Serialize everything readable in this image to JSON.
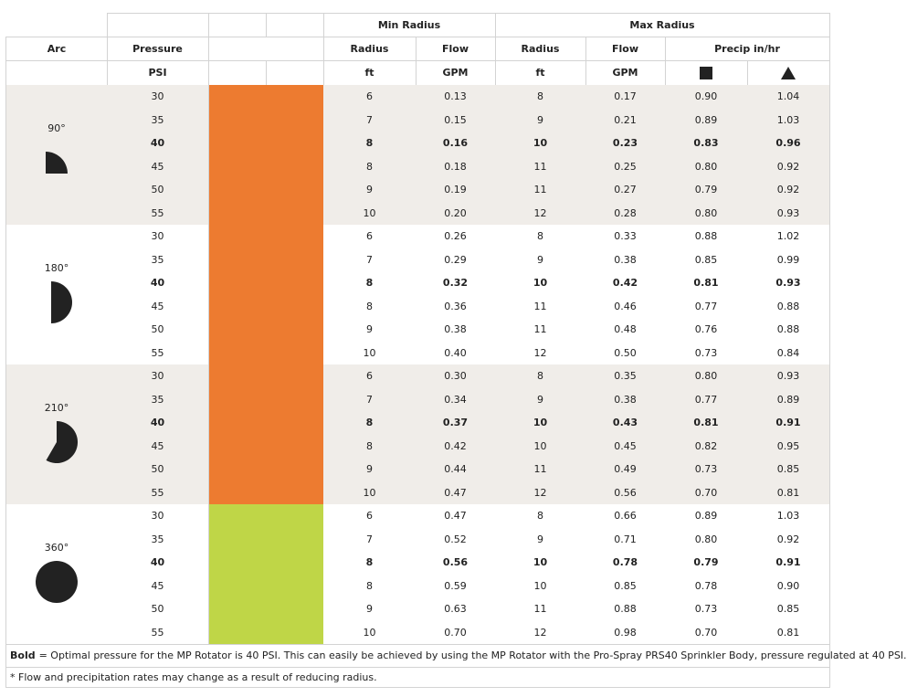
{
  "header": {
    "min_radius": "Min Radius",
    "max_radius": "Max Radius",
    "arc": "Arc",
    "pressure": "Pressure",
    "radius_min": "Radius",
    "flow_min": "Flow",
    "radius_max": "Radius",
    "flow_max": "Flow",
    "precip": "Precip in/hr",
    "psi": "PSI",
    "ft_min": "ft",
    "gpm_min": "GPM",
    "ft_max": "ft",
    "gpm_max": "GPM"
  },
  "groups": [
    {
      "arc": "90°",
      "color": "#ed7b30",
      "background": "#f0ede9",
      "rows": [
        [
          "30",
          "6",
          "0.13",
          "8",
          "0.17",
          "0.90",
          "1.04"
        ],
        [
          "35",
          "7",
          "0.15",
          "9",
          "0.21",
          "0.89",
          "1.03"
        ],
        [
          "40",
          "8",
          "0.16",
          "10",
          "0.23",
          "0.83",
          "0.96"
        ],
        [
          "45",
          "8",
          "0.18",
          "11",
          "0.25",
          "0.80",
          "0.92"
        ],
        [
          "50",
          "9",
          "0.19",
          "11",
          "0.27",
          "0.79",
          "0.92"
        ],
        [
          "55",
          "10",
          "0.20",
          "12",
          "0.28",
          "0.80",
          "0.93"
        ]
      ]
    },
    {
      "arc": "180°",
      "color": "#ed7b30",
      "background": "#ffffff",
      "rows": [
        [
          "30",
          "6",
          "0.26",
          "8",
          "0.33",
          "0.88",
          "1.02"
        ],
        [
          "35",
          "7",
          "0.29",
          "9",
          "0.38",
          "0.85",
          "0.99"
        ],
        [
          "40",
          "8",
          "0.32",
          "10",
          "0.42",
          "0.81",
          "0.93"
        ],
        [
          "45",
          "8",
          "0.36",
          "11",
          "0.46",
          "0.77",
          "0.88"
        ],
        [
          "50",
          "9",
          "0.38",
          "11",
          "0.48",
          "0.76",
          "0.88"
        ],
        [
          "55",
          "10",
          "0.40",
          "12",
          "0.50",
          "0.73",
          "0.84"
        ]
      ]
    },
    {
      "arc": "210°",
      "color": "#ed7b30",
      "background": "#f0ede9",
      "rows": [
        [
          "30",
          "6",
          "0.30",
          "8",
          "0.35",
          "0.80",
          "0.93"
        ],
        [
          "35",
          "7",
          "0.34",
          "9",
          "0.38",
          "0.77",
          "0.89"
        ],
        [
          "40",
          "8",
          "0.37",
          "10",
          "0.43",
          "0.81",
          "0.91"
        ],
        [
          "45",
          "8",
          "0.42",
          "10",
          "0.45",
          "0.82",
          "0.95"
        ],
        [
          "50",
          "9",
          "0.44",
          "11",
          "0.49",
          "0.73",
          "0.85"
        ],
        [
          "55",
          "10",
          "0.47",
          "12",
          "0.56",
          "0.70",
          "0.81"
        ]
      ]
    },
    {
      "arc": "360°",
      "color": "#bfd647",
      "background": "#ffffff",
      "rows": [
        [
          "30",
          "6",
          "0.47",
          "8",
          "0.66",
          "0.89",
          "1.03"
        ],
        [
          "35",
          "7",
          "0.52",
          "9",
          "0.71",
          "0.80",
          "0.92"
        ],
        [
          "40",
          "8",
          "0.56",
          "10",
          "0.78",
          "0.79",
          "0.91"
        ],
        [
          "45",
          "8",
          "0.59",
          "10",
          "0.85",
          "0.78",
          "0.90"
        ],
        [
          "50",
          "9",
          "0.63",
          "11",
          "0.88",
          "0.73",
          "0.85"
        ],
        [
          "55",
          "10",
          "0.70",
          "12",
          "0.98",
          "0.70",
          "0.81"
        ]
      ]
    }
  ],
  "footnotes": {
    "bold": "Bold",
    "text": "= Optimal pressure for the MP Rotator is 40 PSI. This can easily be achieved by using the MP Rotator with the Pro-Spray PRS40 Sprinkler Body, pressure regulated at 40 PSI.",
    "note": "* Flow and precipitation rates may change as a result of reducing radius."
  }
}
